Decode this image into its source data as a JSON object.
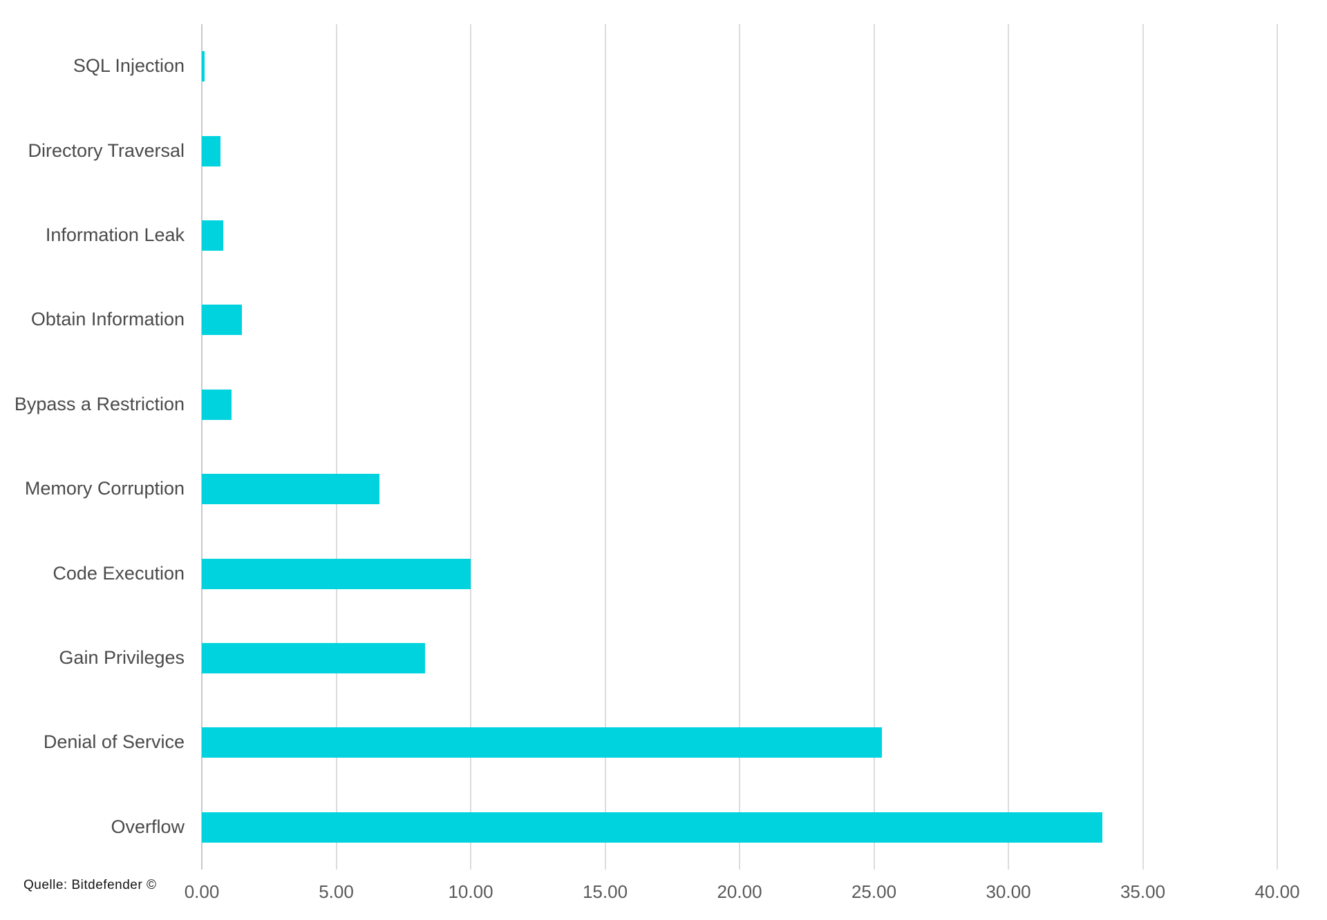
{
  "chart_data": {
    "type": "bar",
    "orientation": "horizontal",
    "title": "",
    "xlabel": "",
    "ylabel": "",
    "categories": [
      "SQL Injection",
      "Directory Traversal",
      "Information Leak",
      "Obtain Information",
      "Bypass a Restriction",
      "Memory Corruption",
      "Code Execution",
      "Gain Privileges",
      "Denial of Service",
      "Overflow"
    ],
    "values": [
      0.1,
      0.7,
      0.8,
      1.5,
      1.1,
      6.6,
      10.0,
      8.3,
      25.3,
      33.5
    ],
    "xlim": [
      0,
      40
    ],
    "x_ticks": [
      "0.00",
      "5.00",
      "10.00",
      "15.00",
      "20.00",
      "25.00",
      "30.00",
      "35.00",
      "40.00"
    ],
    "x_tick_values": [
      0,
      5,
      10,
      15,
      20,
      25,
      30,
      35,
      40
    ],
    "grid": true,
    "legend": false,
    "colors": {
      "bar": "#00d3de",
      "gridline": "#dcdcdc",
      "zero_line": "#c9c9c9",
      "category_label": "#4a4a4a",
      "tick_label": "#595959",
      "source_text": "#141414"
    }
  },
  "source": {
    "label": "Quelle: Bitdefender ©"
  }
}
